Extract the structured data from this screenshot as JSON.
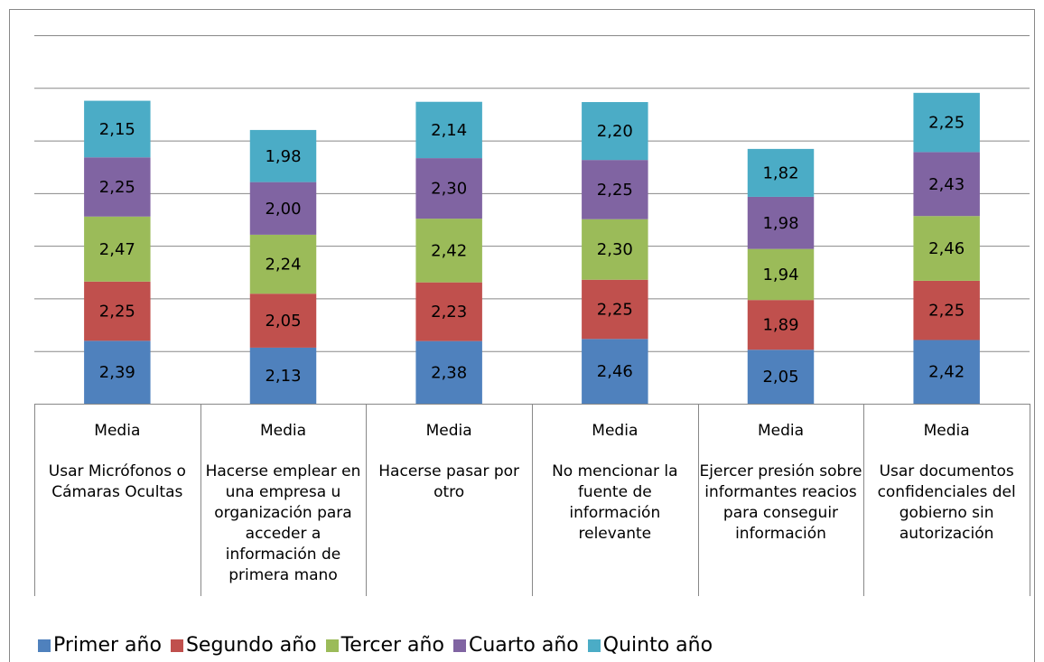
{
  "chart_data": {
    "type": "stacked_bar",
    "categories": [
      [
        "Media",
        "Usar Micrófonos o Cámaras Ocultas"
      ],
      [
        "Media",
        "Hacerse emplear en una empresa u organización para acceder a información de primera mano"
      ],
      [
        "Media",
        "Hacerse pasar por otro"
      ],
      [
        "Media",
        "No mencionar la fuente de información relevante"
      ],
      [
        "Media",
        "Ejercer presión sobre informantes reacios para conseguir información"
      ],
      [
        "Media",
        "Usar documentos confidenciales del gobierno sin autorización"
      ]
    ],
    "series": [
      {
        "name": "Primer año",
        "color": "#4f81bd",
        "values": [
          2.39,
          2.13,
          2.38,
          2.46,
          2.05,
          2.42
        ],
        "value_labels": [
          "2,39",
          "2,13",
          "2,38",
          "2,46",
          "2,05",
          "2,42"
        ]
      },
      {
        "name": "Segundo año",
        "color": "#c0504d",
        "values": [
          2.25,
          2.05,
          2.23,
          2.25,
          1.89,
          2.25
        ],
        "value_labels": [
          "2,25",
          "2,05",
          "2,23",
          "2,25",
          "1,89",
          "2,25"
        ]
      },
      {
        "name": "Tercer año",
        "color": "#9bbb59",
        "values": [
          2.47,
          2.24,
          2.42,
          2.3,
          1.94,
          2.46
        ],
        "value_labels": [
          "2,47",
          "2,24",
          "2,42",
          "2,30",
          "1,94",
          "2,46"
        ]
      },
      {
        "name": "Cuarto año",
        "color": "#8064a2",
        "values": [
          2.25,
          2.0,
          2.3,
          2.25,
          1.98,
          2.43
        ],
        "value_labels": [
          "2,25",
          "2,00",
          "2,30",
          "2,25",
          "1,98",
          "2,43"
        ]
      },
      {
        "name": "Quinto año",
        "color": "#4bacc6",
        "values": [
          2.15,
          1.98,
          2.14,
          2.2,
          1.82,
          2.25
        ],
        "value_labels": [
          "2,15",
          "1,98",
          "2,14",
          "2,20",
          "1,82",
          "2,25"
        ]
      }
    ],
    "ylim": [
      0,
      14
    ],
    "yticks": [
      0,
      2,
      4,
      6,
      8,
      10,
      12,
      14
    ],
    "grid": true,
    "legend": "bottom"
  }
}
